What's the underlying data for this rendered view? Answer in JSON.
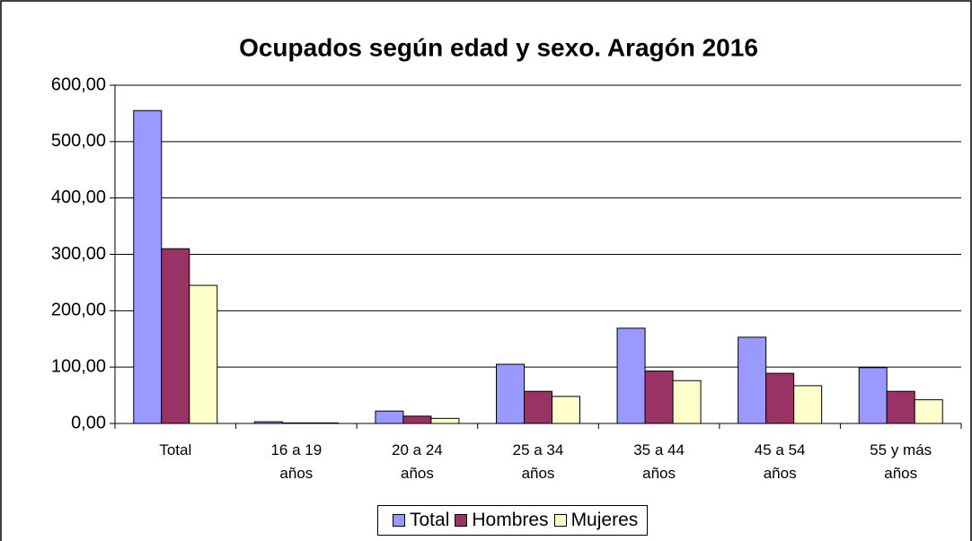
{
  "chart_data": {
    "type": "bar",
    "title": "Ocupados según edad y sexo. Aragón 2016",
    "categories": [
      "Total",
      "16 a 19\naños",
      "20 a 24\naños",
      "25 a 34\naños",
      "35 a 44\naños",
      "45 a 54\naños",
      "55 y más\naños"
    ],
    "series": [
      {
        "name": "Total",
        "color": "#9999ff",
        "values": [
          555,
          3,
          22,
          105,
          169,
          153,
          99
        ]
      },
      {
        "name": "Hombres",
        "color": "#993366",
        "values": [
          310,
          1,
          13,
          57,
          93,
          89,
          57
        ]
      },
      {
        "name": "Mujeres",
        "color": "#ffffcc",
        "values": [
          245,
          1,
          9,
          48,
          76,
          67,
          42
        ]
      }
    ],
    "ylim": [
      0,
      600
    ],
    "yticks": [
      {
        "value": 0,
        "label": "0,00"
      },
      {
        "value": 100,
        "label": "100,00"
      },
      {
        "value": 200,
        "label": "200,00"
      },
      {
        "value": 300,
        "label": "300,00"
      },
      {
        "value": 400,
        "label": "400,00"
      },
      {
        "value": 500,
        "label": "500,00"
      },
      {
        "value": 600,
        "label": "600,00"
      }
    ],
    "grid": true,
    "legend": "bottom"
  }
}
